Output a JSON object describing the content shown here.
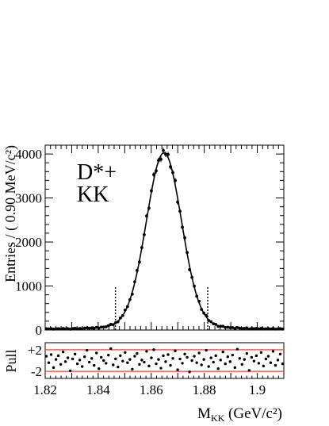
{
  "chart_data": [
    {
      "type": "line",
      "xlim": [
        1.82,
        1.91
      ],
      "ylim": [
        0,
        4200
      ],
      "ylabel": "Entries / ( 0.90 MeV/c²)",
      "y_ticks": [
        0,
        1000,
        2000,
        3000,
        4000
      ],
      "y_tick_labels": [
        "0",
        "1000",
        "2000",
        "3000",
        "4000"
      ],
      "annotation_lines": [
        "D*+",
        "KK"
      ],
      "series": [
        {
          "role": "data",
          "mean": 1.8648,
          "sigma": 0.0066,
          "peak": 3880,
          "tail_amp": 120,
          "tail_width": 0.014,
          "bin_width": 0.0009,
          "x_start": 1.82045,
          "points": 100
        },
        {
          "role": "fit"
        }
      ],
      "signal_window": [
        1.8465,
        1.8813
      ],
      "signal_window_height": 1000,
      "grid": false
    },
    {
      "type": "scatter",
      "ylabel": "Pull",
      "ylim": [
        -3.3,
        3.3
      ],
      "y_tick_labels": [
        "+2",
        "-2"
      ],
      "y_ticks": [
        2,
        -2
      ],
      "reference_lines": [
        2,
        -2
      ],
      "reference_color": "#e8463c",
      "xlim": [
        1.82,
        1.91
      ],
      "x_ticks": [
        1.82,
        1.84,
        1.86,
        1.88,
        1.9
      ],
      "x_tick_labels": [
        "1.82",
        "1.84",
        "1.86",
        "1.88",
        "1.9"
      ],
      "xlabel": "M",
      "xlabel_sub": "KK",
      "xlabel_unit": " (GeV/c²)",
      "pulls": [
        0.8,
        -0.4,
        1.1,
        -1.3,
        0.2,
        0.9,
        -0.7,
        1.6,
        -0.2,
        0.5,
        -1.9,
        0.3,
        1.2,
        -0.6,
        0.1,
        -1.1,
        0.7,
        1.9,
        -0.3,
        0.4,
        -0.9,
        1.4,
        -1.5,
        0.6,
        0.0,
        -0.5,
        1.0,
        2.2,
        -0.8,
        0.3,
        -1.2,
        0.9,
        -0.1,
        1.5,
        -0.4,
        0.2,
        -1.6,
        0.8,
        1.3,
        -0.7,
        0.1,
        -0.3,
        1.7,
        -1.0,
        0.5,
        2.0,
        -0.6,
        0.2,
        -1.4,
        0.9,
        -0.2,
        1.1,
        -0.9,
        0.4,
        1.8,
        -1.7,
        0.3,
        -0.5,
        1.2,
        0.6,
        -2.1,
        0.0,
        0.8,
        -0.4,
        1.4,
        -0.8,
        0.2,
        1.9,
        -1.1,
        0.5,
        -0.3,
        0.9,
        -1.5,
        0.1,
        1.6,
        -0.6,
        0.7,
        -0.2,
        1.0,
        -1.3,
        2.1,
        0.4,
        -0.7,
        0.2,
        1.3,
        -1.8,
        0.6,
        -0.1,
        0.9,
        -0.5,
        1.5,
        -1.0,
        0.3,
        0.8,
        -0.4,
        1.7,
        -0.9,
        0.1,
        1.2,
        -0.6
      ]
    }
  ]
}
